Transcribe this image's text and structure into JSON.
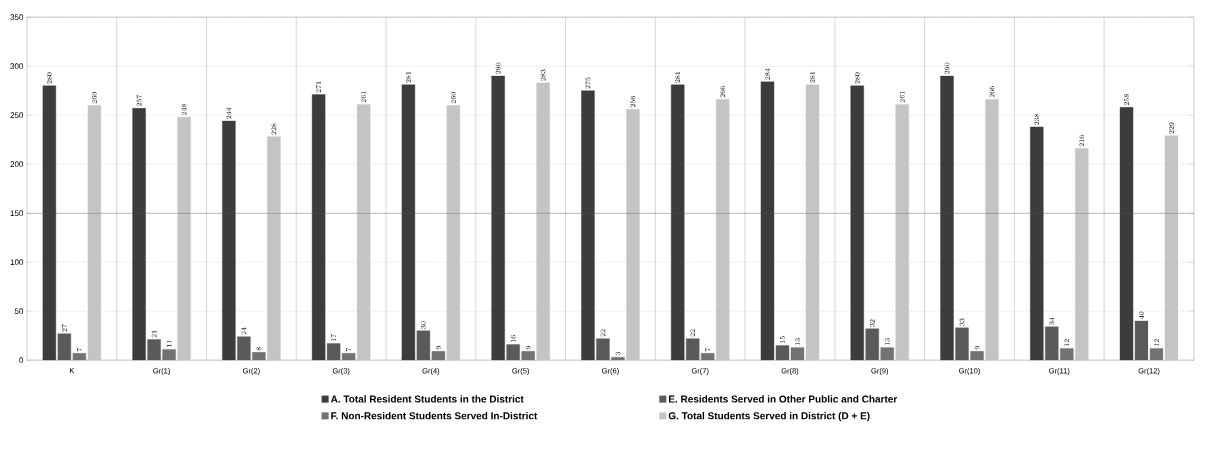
{
  "chart_data": {
    "type": "bar",
    "categories": [
      "K",
      "Gr(1)",
      "Gr(2)",
      "Gr(3)",
      "Gr(4)",
      "Gr(5)",
      "Gr(6)",
      "Gr(7)",
      "Gr(8)",
      "Gr(9)",
      "Gr(10)",
      "Gr(11)",
      "Gr(12)"
    ],
    "series": [
      {
        "name": "A.  Total Resident Students in the District",
        "color": "#3c3c3c",
        "values": [
          280,
          257,
          244,
          271,
          281,
          290,
          275,
          281,
          284,
          280,
          290,
          238,
          258
        ]
      },
      {
        "name": "E.  Residents Served in Other Public and Charter",
        "color": "#5a5a5a",
        "values": [
          27,
          21,
          24,
          17,
          30,
          16,
          22,
          22,
          15,
          32,
          33,
          34,
          40
        ]
      },
      {
        "name": "F.  Non-Resident Students Served In-District",
        "color": "#727272",
        "values": [
          7,
          11,
          8,
          7,
          9,
          9,
          3,
          7,
          13,
          13,
          9,
          12,
          12
        ]
      },
      {
        "name": "G.  Total Students Served in District (D + E)",
        "color": "#c4c4c4",
        "values": [
          260,
          248,
          228,
          261,
          260,
          283,
          256,
          266,
          281,
          261,
          266,
          216,
          229
        ]
      }
    ],
    "ylim": [
      0,
      350
    ],
    "yticks": [
      0,
      50,
      100,
      150,
      200,
      250,
      300,
      350
    ],
    "ref_lines": [
      {
        "axis": "y",
        "value": 150,
        "color": "#555555",
        "line_style": "solid"
      }
    ],
    "grid": true,
    "data_labels": true,
    "legend": "bottom"
  }
}
